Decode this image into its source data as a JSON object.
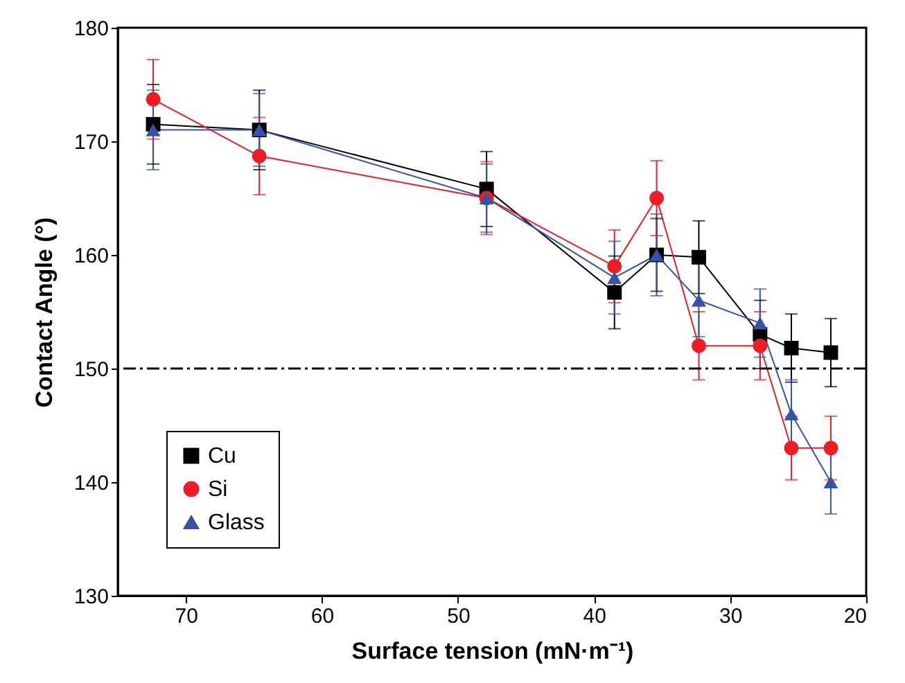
{
  "chart_data": {
    "type": "line",
    "xlabel": "Surface tension (mN·m⁻¹)",
    "ylabel": "Contact Angle (°)",
    "x": [
      72.4,
      64.6,
      47.9,
      38.5,
      35.4,
      32.3,
      27.8,
      25.5,
      22.6
    ],
    "xlim": [
      75,
      20
    ],
    "xticks": [
      70,
      60,
      50,
      40,
      30,
      20
    ],
    "ylim": [
      130,
      180
    ],
    "yticks": [
      130,
      140,
      150,
      160,
      170,
      180
    ],
    "grid": false,
    "legend": "bottom left",
    "series": [
      {
        "name": "Cu",
        "color": "#000000",
        "marker": "square",
        "values": [
          171.5,
          171,
          165.8,
          156.7,
          160,
          159.8,
          153,
          151.8,
          151.4
        ],
        "errors": [
          3.5,
          3.5,
          3.3,
          3.2,
          3.2,
          3.2,
          3,
          3,
          3
        ]
      },
      {
        "name": "Si",
        "color": "#ee1c24",
        "marker": "circle",
        "values": [
          173.7,
          168.7,
          165,
          159,
          165,
          152,
          152,
          143,
          143
        ],
        "errors": [
          3.5,
          3.4,
          3.2,
          3.2,
          3.3,
          3,
          3,
          2.8,
          2.8
        ]
      },
      {
        "name": "Glass",
        "color": "#3953a4",
        "marker": "triangle",
        "values": [
          171,
          171,
          165,
          158,
          160,
          156,
          154,
          146,
          140
        ],
        "errors": [
          3.5,
          3.2,
          3,
          3.2,
          3.6,
          3.2,
          3,
          3,
          2.8
        ]
      }
    ],
    "ref_lines": [
      {
        "axis": "y",
        "value": 150,
        "color": "#000000",
        "line_style": "dashdot"
      }
    ]
  }
}
